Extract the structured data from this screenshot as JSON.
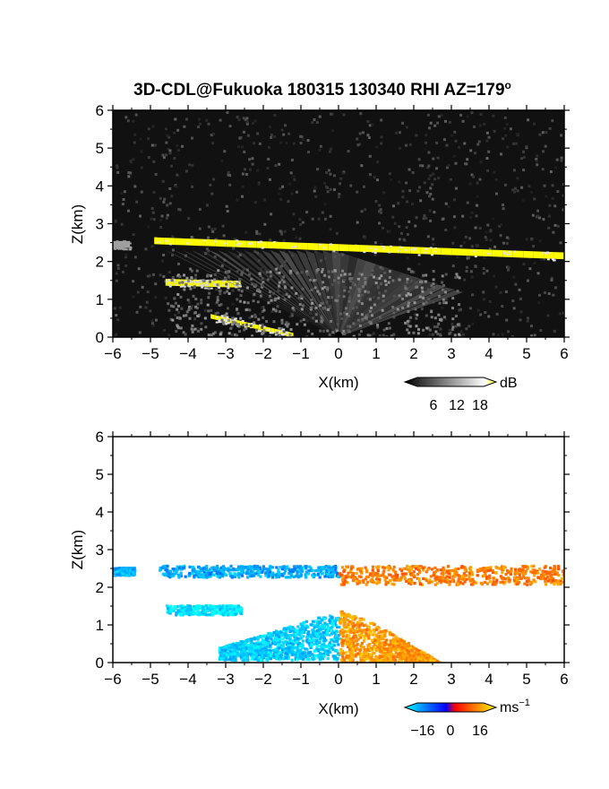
{
  "figure": {
    "title": "3D-CDL@Fukuoka 180315 130340 RHI AZ=179",
    "title_superscript": "o"
  },
  "chart_data": [
    {
      "type": "heatmap",
      "panel": "reflectivity",
      "xlabel": "X(km)",
      "ylabel": "Z(km)",
      "xlim": [
        -6,
        6
      ],
      "ylim": [
        0,
        6
      ],
      "x_ticks": [
        -6,
        -5,
        -4,
        -3,
        -2,
        -1,
        0,
        1,
        2,
        3,
        4,
        5,
        6
      ],
      "y_ticks": [
        0,
        1,
        2,
        3,
        4,
        5,
        6
      ],
      "grid": false,
      "background_color": "#111111",
      "colorbar": {
        "unit": "dB",
        "ticks": [
          "6",
          "12",
          "18"
        ],
        "colors": [
          "#000000",
          "#ffffff",
          "#ffff00"
        ],
        "position": "below-right"
      },
      "features": [
        {
          "kind": "strong-echo-layer",
          "x_start": -4.9,
          "x_end": 6.0,
          "z_start": 2.55,
          "z_end": 2.15,
          "value_db": 20
        },
        {
          "kind": "strong-echo-layer",
          "x_start": -6.0,
          "x_end": -5.55,
          "z_start": 2.45,
          "z_end": 2.45,
          "value_db": 14
        },
        {
          "kind": "strong-echo-layer",
          "x_start": -4.6,
          "x_end": -2.6,
          "z_start": 1.45,
          "z_end": 1.4,
          "value_db": 19
        },
        {
          "kind": "ground-clutter",
          "x_start": -3.4,
          "x_end": -1.2,
          "z_start": 0.55,
          "z_end": 0.05,
          "value_db": 20
        },
        {
          "kind": "aerosol-fan",
          "x_start": -4.5,
          "x_end": 3.2,
          "z_top": 2.3,
          "value_db": 9
        }
      ]
    },
    {
      "type": "heatmap",
      "panel": "radial-velocity",
      "xlabel": "X(km)",
      "ylabel": "Z(km)",
      "xlim": [
        -6,
        6
      ],
      "ylim": [
        0,
        6
      ],
      "x_ticks": [
        -6,
        -5,
        -4,
        -3,
        -2,
        -1,
        0,
        1,
        2,
        3,
        4,
        5,
        6
      ],
      "y_ticks": [
        0,
        1,
        2,
        3,
        4,
        5,
        6
      ],
      "grid": false,
      "background_color": "#ffffff",
      "colorbar": {
        "unit": "ms",
        "unit_superscript": "−1",
        "ticks": [
          "−16",
          "0",
          "16"
        ],
        "colors": [
          "#00ffff",
          "#0000ff",
          "#ff0000",
          "#ffff00"
        ],
        "position": "below-right"
      },
      "features": [
        {
          "kind": "layer",
          "x_start": -4.8,
          "x_end": 0.0,
          "z_bottom": 2.3,
          "z_top": 2.6,
          "velocity_ms": -13
        },
        {
          "kind": "layer",
          "x_start": 0.0,
          "x_end": 6.0,
          "z_bottom": 2.1,
          "z_top": 2.6,
          "velocity_ms": 10
        },
        {
          "kind": "layer",
          "x_start": -6.0,
          "x_end": -5.45,
          "z_bottom": 2.35,
          "z_top": 2.55,
          "velocity_ms": -14
        },
        {
          "kind": "layer",
          "x_start": -4.6,
          "x_end": -2.6,
          "z_bottom": 1.3,
          "z_top": 1.55,
          "velocity_ms": -18
        },
        {
          "kind": "blob",
          "x_start": -3.2,
          "x_end": 0.0,
          "z_bottom": 0.1,
          "z_top": 1.4,
          "velocity_ms": -16
        },
        {
          "kind": "blob",
          "x_start": 0.0,
          "x_end": 2.7,
          "z_bottom": 0.0,
          "z_top": 1.4,
          "velocity_ms": 12
        }
      ]
    }
  ]
}
